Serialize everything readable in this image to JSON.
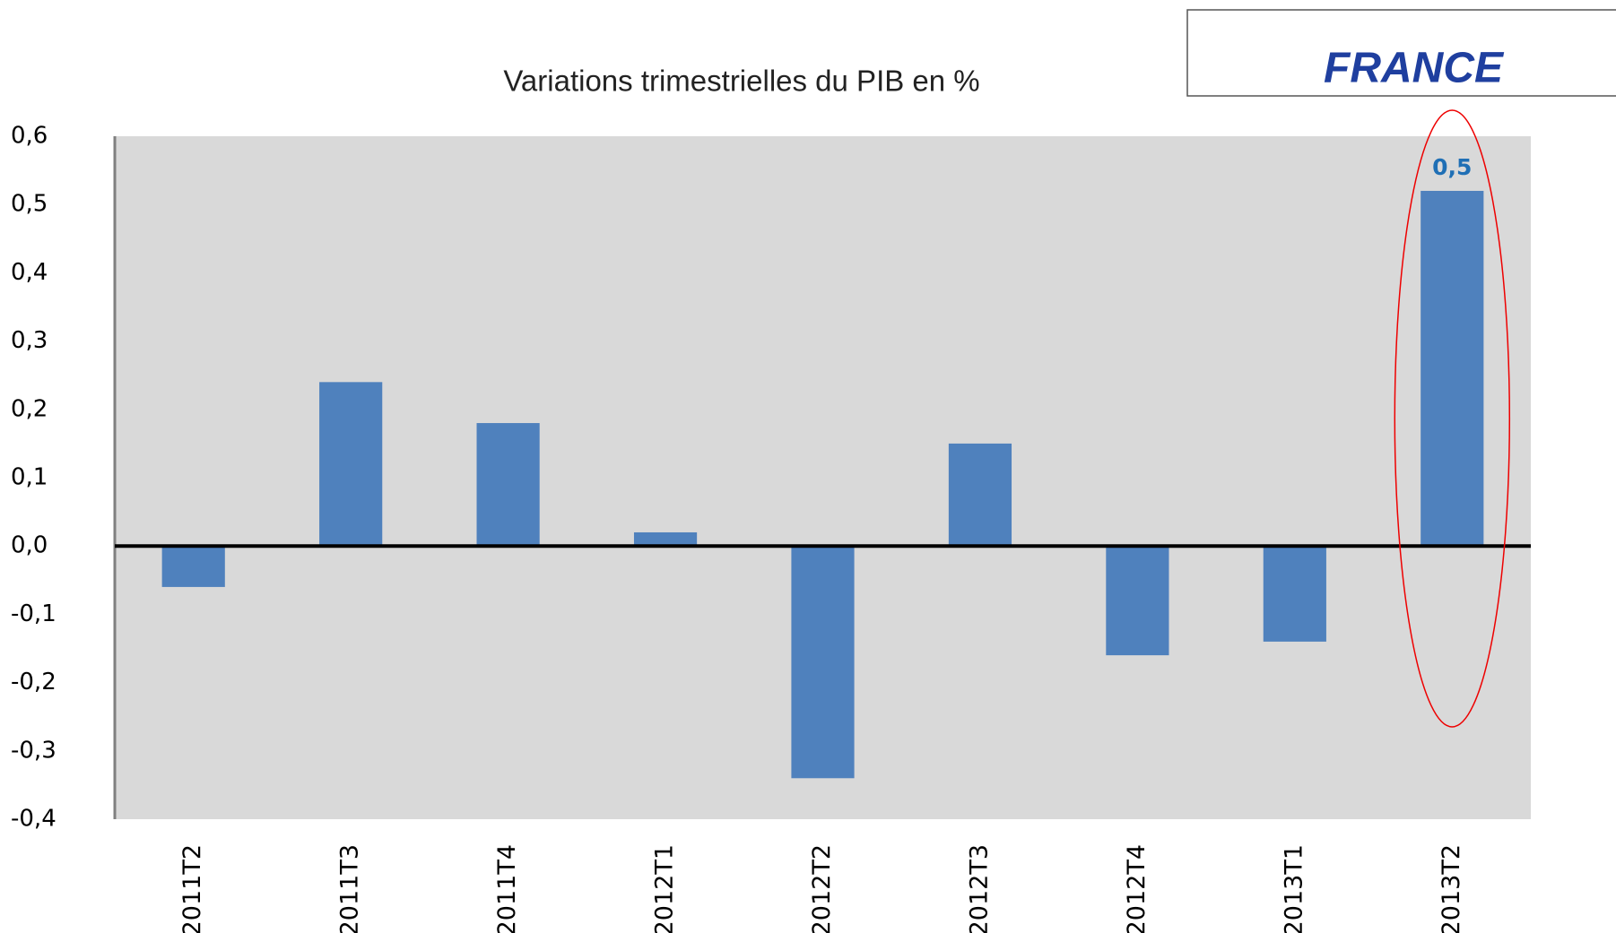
{
  "chart_data": {
    "type": "bar",
    "title": "Variations trimestrielles du PIB en %",
    "annotation": "FRANCE",
    "categories": [
      "2011T2",
      "2011T3",
      "2011T4",
      "2012T1",
      "2012T2",
      "2012T3",
      "2012T4",
      "2013T1",
      "2013T2"
    ],
    "values": [
      -0.06,
      0.24,
      0.18,
      0.02,
      -0.34,
      0.15,
      -0.16,
      -0.14,
      0.52
    ],
    "value_labels": [
      null,
      null,
      null,
      null,
      null,
      null,
      null,
      null,
      "0,5"
    ],
    "color": "#4f81bd",
    "ylim": [
      -0.4,
      0.6
    ],
    "yticks": [
      {
        "value": -0.4,
        "label": "-0,4"
      },
      {
        "value": -0.3,
        "label": "-0,3"
      },
      {
        "value": -0.2,
        "label": "-0,2"
      },
      {
        "value": -0.1,
        "label": "-0,1"
      },
      {
        "value": 0,
        "label": "0,0"
      },
      {
        "value": 0.1,
        "label": "0,1"
      },
      {
        "value": 0.2,
        "label": "0,2"
      },
      {
        "value": 0.3,
        "label": "0,3"
      },
      {
        "value": 0.4,
        "label": "0,4"
      },
      {
        "value": 0.5,
        "label": "0,5"
      },
      {
        "value": 0.6,
        "label": "0,6"
      }
    ],
    "grid": false
  }
}
